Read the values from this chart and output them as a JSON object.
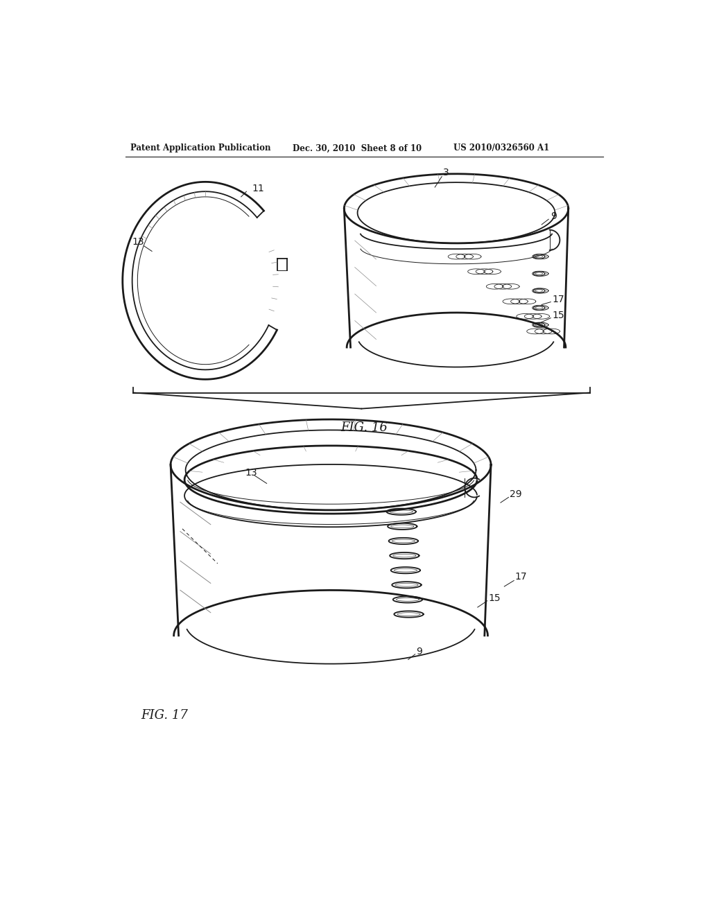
{
  "header_left": "Patent Application Publication",
  "header_mid": "Dec. 30, 2010  Sheet 8 of 10",
  "header_right": "US 2010/0326560 A1",
  "fig16_label": "FIG. 16",
  "fig17_label": "FIG. 17",
  "background": "#ffffff",
  "line_color": "#1a1a1a",
  "gray_shade": "#888888",
  "light_gray": "#cccccc"
}
